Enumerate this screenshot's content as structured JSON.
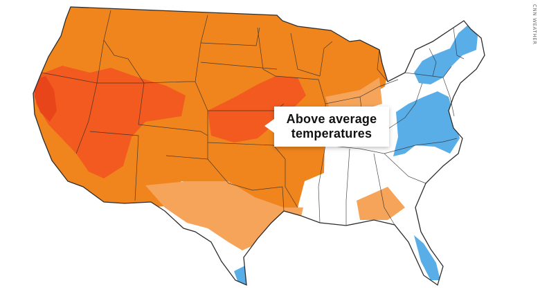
{
  "callout": {
    "line1": "Above average",
    "line2": "temperatures"
  },
  "credit": "CNN WEATHER",
  "legend_colors": {
    "much_above": "#f25a1f",
    "above": "#f0851e",
    "slightly_above": "#f5a45a",
    "near_normal": "#ffffff",
    "below": "#5aaee8",
    "state_borders": "#2b2b2b"
  }
}
